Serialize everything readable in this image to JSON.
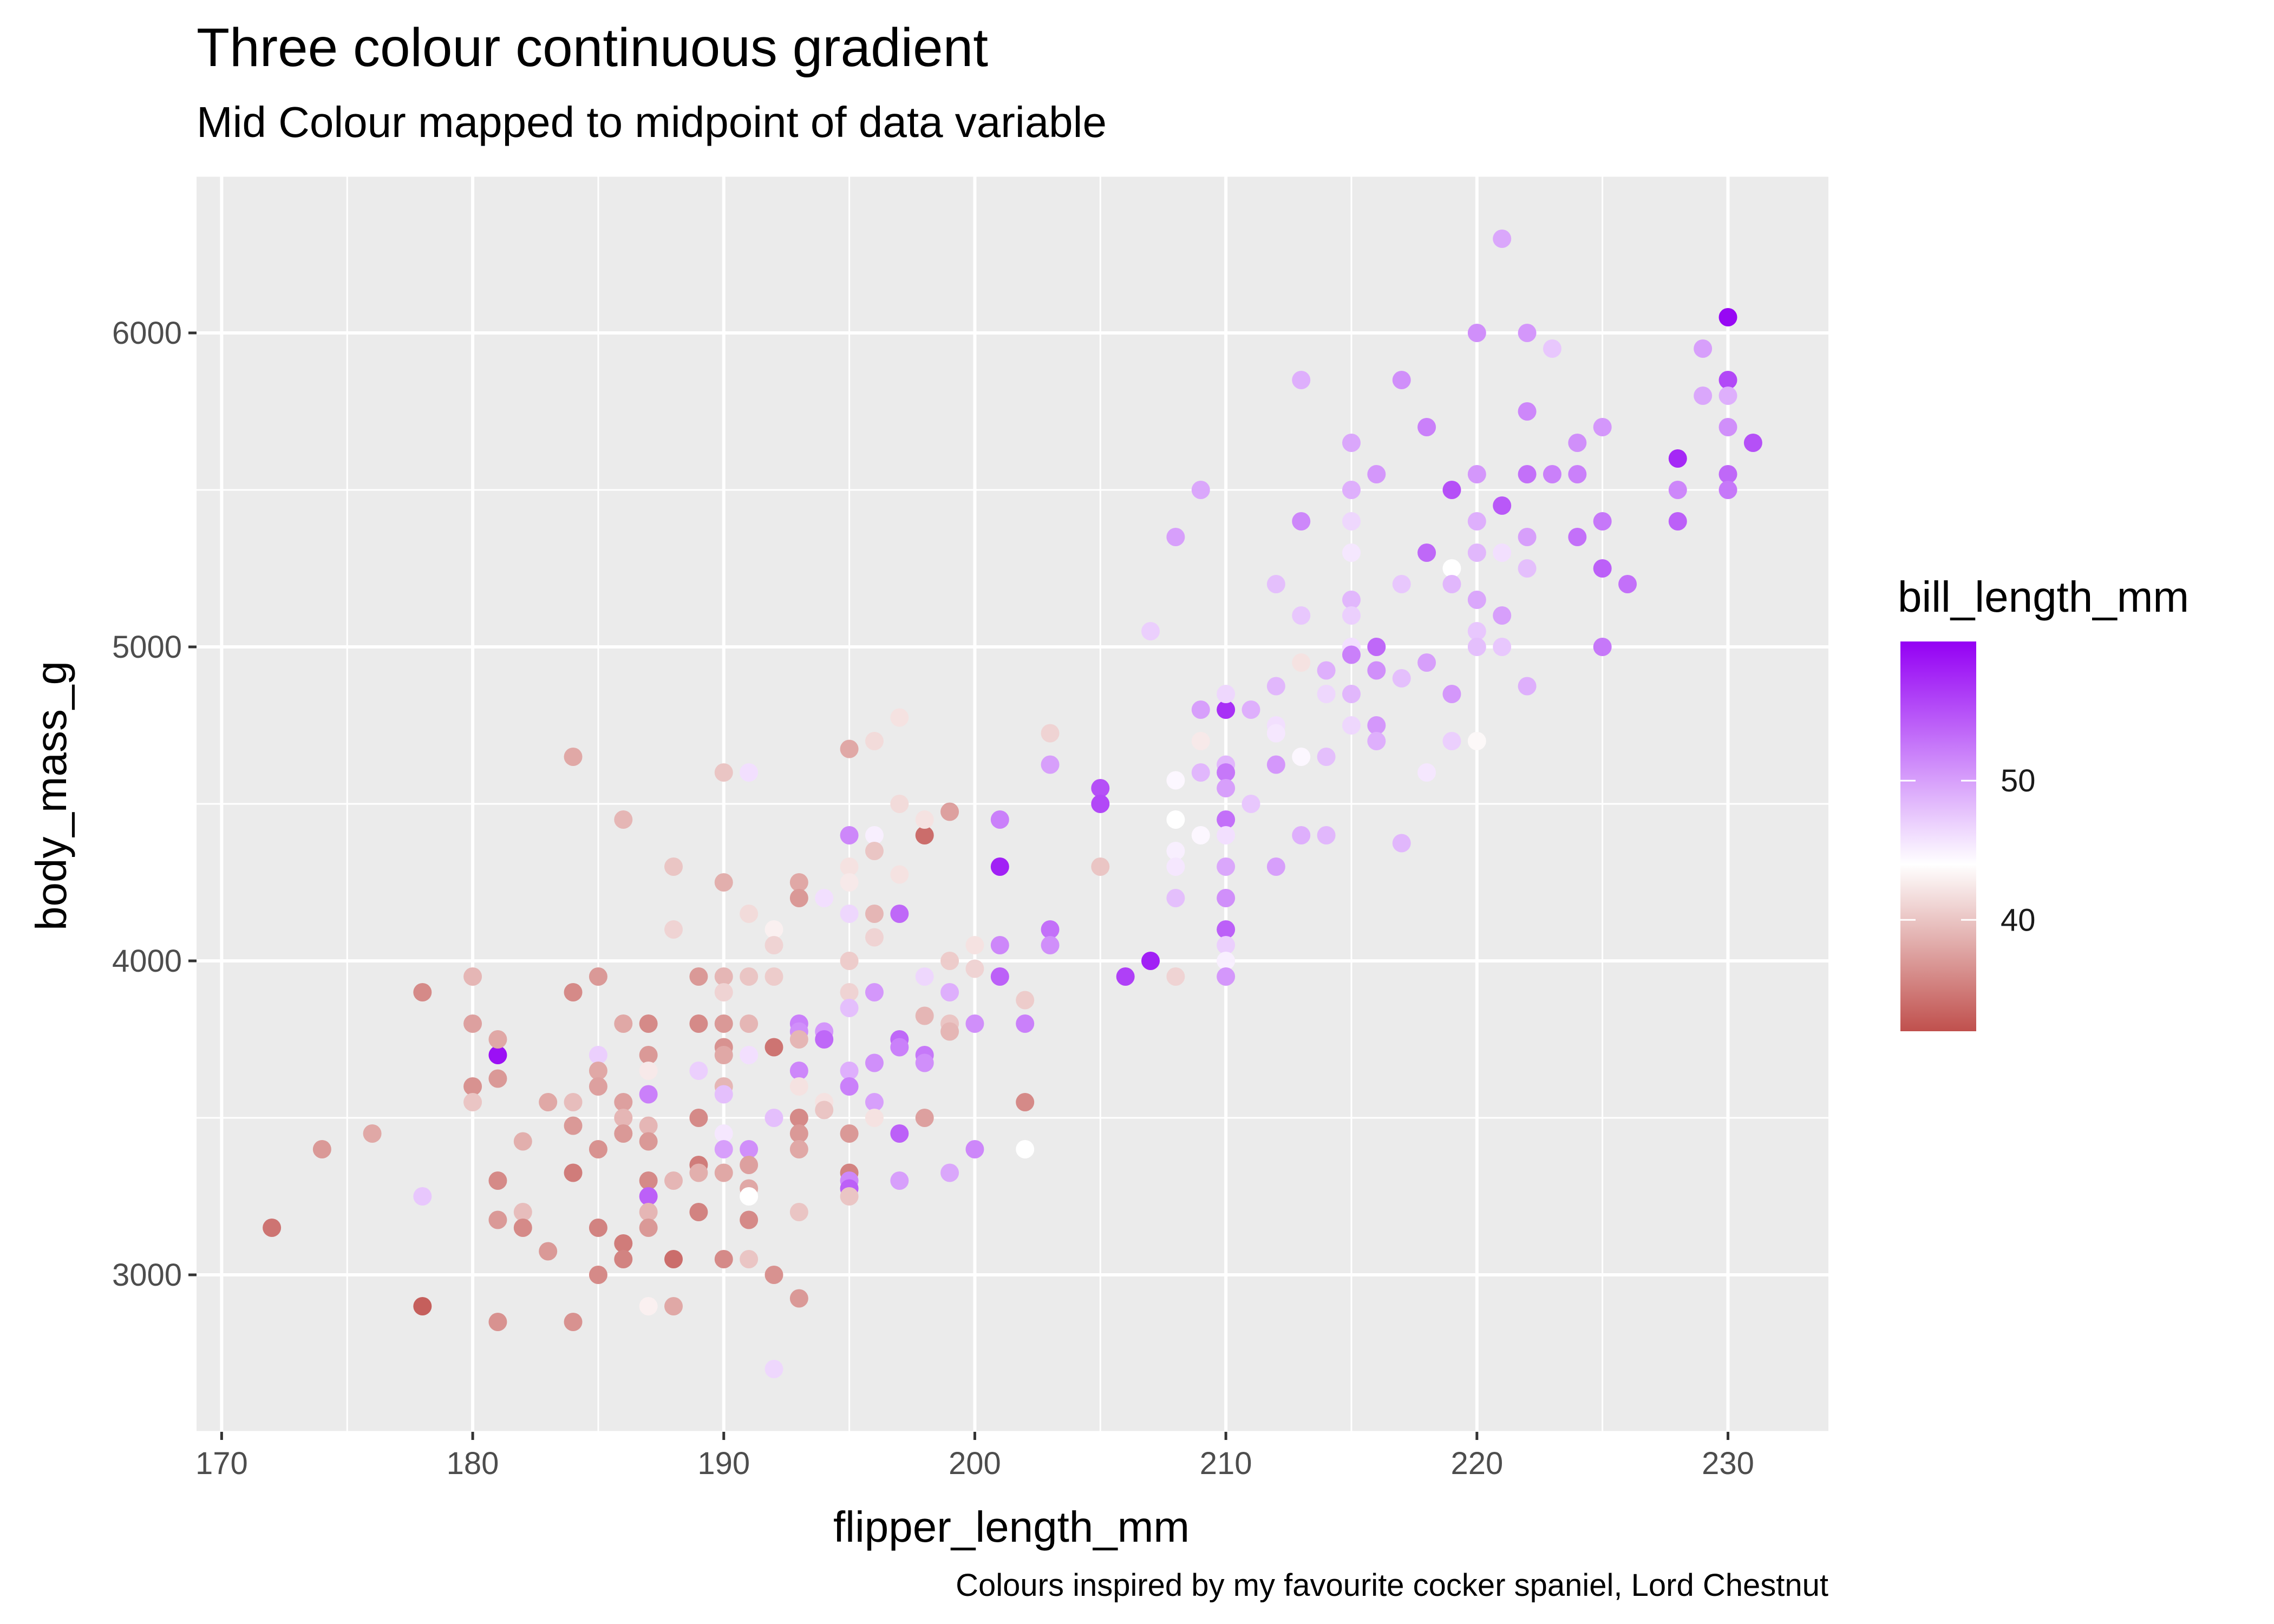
{
  "chart_data": {
    "type": "scatter",
    "title": "Three colour continuous gradient",
    "subtitle": "Mid Colour mapped to midpoint of data variable",
    "xlabel": "flipper_length_mm",
    "ylabel": "body_mass_g",
    "caption": "Colours inspired by my favourite cocker spaniel, Lord Chestnut",
    "xlim": [
      169,
      234
    ],
    "ylim": [
      2500,
      6500
    ],
    "xticks": [
      170,
      180,
      190,
      200,
      210,
      220,
      230
    ],
    "yticks": [
      3000,
      4000,
      5000,
      6000
    ],
    "grid": true,
    "legend": {
      "title": "bill_length_mm",
      "position": "right",
      "range": [
        32,
        60
      ],
      "ticks": [
        40,
        50
      ],
      "colors": {
        "low": "#C0504D",
        "mid": "#FFFFFF",
        "high": "#9400F4"
      },
      "midpoint": 44
    },
    "points": [
      [
        172,
        3150,
        34.5
      ],
      [
        174,
        3400,
        37.0
      ],
      [
        176,
        3450,
        38.0
      ],
      [
        178,
        3900,
        36.0
      ],
      [
        178,
        2900,
        33.0
      ],
      [
        178,
        3250,
        47.5
      ],
      [
        180,
        3950,
        39.0
      ],
      [
        180,
        3800,
        37.5
      ],
      [
        180,
        3600,
        36.5
      ],
      [
        180,
        3550,
        40.0
      ],
      [
        181,
        3700,
        59.0
      ],
      [
        181,
        3750,
        38.0
      ],
      [
        181,
        3625,
        37.0
      ],
      [
        181,
        3300,
        36.0
      ],
      [
        181,
        3175,
        37.0
      ],
      [
        181,
        2850,
        36.5
      ],
      [
        182,
        3425,
        38.5
      ],
      [
        182,
        3200,
        39.5
      ],
      [
        182,
        3150,
        36.0
      ],
      [
        183,
        3550,
        38.0
      ],
      [
        183,
        3075,
        37.0
      ],
      [
        184,
        4650,
        38.0
      ],
      [
        184,
        3900,
        36.0
      ],
      [
        184,
        3550,
        39.5
      ],
      [
        184,
        3475,
        37.0
      ],
      [
        184,
        3325,
        35.0
      ],
      [
        184,
        2850,
        36.5
      ],
      [
        185,
        3950,
        37.0
      ],
      [
        185,
        3700,
        47.0
      ],
      [
        185,
        3650,
        38.0
      ],
      [
        185,
        3600,
        37.5
      ],
      [
        185,
        3400,
        36.5
      ],
      [
        185,
        3150,
        35.5
      ],
      [
        185,
        3000,
        36.0
      ],
      [
        186,
        4450,
        39.0
      ],
      [
        186,
        3800,
        38.0
      ],
      [
        186,
        3550,
        37.5
      ],
      [
        186,
        3500,
        39.0
      ],
      [
        186,
        3450,
        37.0
      ],
      [
        186,
        3100,
        35.0
      ],
      [
        186,
        3050,
        35.5
      ],
      [
        187,
        3800,
        36.0
      ],
      [
        187,
        3700,
        37.0
      ],
      [
        187,
        3650,
        42.5
      ],
      [
        187,
        3575,
        52.0
      ],
      [
        187,
        3475,
        39.0
      ],
      [
        187,
        3425,
        37.0
      ],
      [
        187,
        3300,
        36.0
      ],
      [
        187,
        3250,
        54.0
      ],
      [
        187,
        3200,
        39.0
      ],
      [
        187,
        3150,
        37.0
      ],
      [
        187,
        2900,
        43.0
      ],
      [
        188,
        4300,
        40.0
      ],
      [
        188,
        4100,
        41.0
      ],
      [
        188,
        3050,
        34.0
      ],
      [
        188,
        2900,
        38.0
      ],
      [
        188,
        3300,
        39.0
      ],
      [
        189,
        3950,
        37.0
      ],
      [
        189,
        3800,
        36.0
      ],
      [
        189,
        3650,
        47.0
      ],
      [
        189,
        3500,
        36.0
      ],
      [
        189,
        3350,
        35.0
      ],
      [
        189,
        3325,
        38.5
      ],
      [
        189,
        3200,
        35.5
      ],
      [
        190,
        4600,
        40.0
      ],
      [
        190,
        4250,
        38.5
      ],
      [
        190,
        3950,
        39.0
      ],
      [
        190,
        3900,
        41.0
      ],
      [
        190,
        3800,
        37.0
      ],
      [
        190,
        3725,
        36.5
      ],
      [
        190,
        3700,
        38.0
      ],
      [
        190,
        3600,
        39.0
      ],
      [
        190,
        3575,
        48.0
      ],
      [
        190,
        3450,
        45.5
      ],
      [
        190,
        3400,
        50.0
      ],
      [
        190,
        3325,
        38.0
      ],
      [
        190,
        3050,
        36.0
      ],
      [
        191,
        4600,
        46.0
      ],
      [
        191,
        4150,
        41.5
      ],
      [
        191,
        3950,
        40.0
      ],
      [
        191,
        3800,
        39.0
      ],
      [
        191,
        3700,
        46.0
      ],
      [
        191,
        3400,
        51.0
      ],
      [
        191,
        3350,
        37.5
      ],
      [
        191,
        3275,
        38.0
      ],
      [
        191,
        3250,
        44.0
      ],
      [
        191,
        3175,
        36.0
      ],
      [
        191,
        3050,
        40.0
      ],
      [
        192,
        4100,
        43.0
      ],
      [
        192,
        4050,
        41.0
      ],
      [
        192,
        3950,
        40.5
      ],
      [
        192,
        3725,
        34.5
      ],
      [
        192,
        3500,
        48.0
      ],
      [
        192,
        3000,
        36.5
      ],
      [
        192,
        2700,
        46.5
      ],
      [
        193,
        4250,
        38.0
      ],
      [
        193,
        4200,
        37.0
      ],
      [
        193,
        3800,
        52.0
      ],
      [
        193,
        3775,
        51.0
      ],
      [
        193,
        3750,
        39.0
      ],
      [
        193,
        3650,
        51.5
      ],
      [
        193,
        3600,
        42.0
      ],
      [
        193,
        3500,
        36.0
      ],
      [
        193,
        3450,
        37.0
      ],
      [
        193,
        3400,
        38.0
      ],
      [
        193,
        3200,
        40.0
      ],
      [
        193,
        2925,
        37.0
      ],
      [
        194,
        4200,
        46.0
      ],
      [
        194,
        3775,
        50.5
      ],
      [
        194,
        3750,
        53.5
      ],
      [
        194,
        3550,
        42.0
      ],
      [
        194,
        3525,
        40.0
      ],
      [
        195,
        4675,
        38.0
      ],
      [
        195,
        4400,
        51.5
      ],
      [
        195,
        4300,
        42.0
      ],
      [
        195,
        4250,
        42.5
      ],
      [
        195,
        4150,
        46.5
      ],
      [
        195,
        4000,
        40.5
      ],
      [
        195,
        3900,
        41.0
      ],
      [
        195,
        3850,
        48.0
      ],
      [
        195,
        3650,
        49.0
      ],
      [
        195,
        3600,
        52.0
      ],
      [
        195,
        3450,
        37.0
      ],
      [
        195,
        3325,
        35.5
      ],
      [
        195,
        3300,
        51.5
      ],
      [
        195,
        3275,
        54.0
      ],
      [
        195,
        3250,
        40.0
      ],
      [
        196,
        4700,
        41.5
      ],
      [
        196,
        4400,
        45.0
      ],
      [
        196,
        4350,
        40.0
      ],
      [
        196,
        4150,
        39.0
      ],
      [
        196,
        4075,
        41.0
      ],
      [
        196,
        3900,
        50.5
      ],
      [
        196,
        3675,
        51.0
      ],
      [
        196,
        3550,
        50.0
      ],
      [
        196,
        3500,
        42.0
      ],
      [
        197,
        4775,
        42.0
      ],
      [
        197,
        4500,
        41.5
      ],
      [
        197,
        4275,
        42.0
      ],
      [
        197,
        4150,
        53.5
      ],
      [
        197,
        3750,
        53.5
      ],
      [
        197,
        3725,
        52.0
      ],
      [
        197,
        3450,
        54.0
      ],
      [
        197,
        3300,
        50.0
      ],
      [
        198,
        4400,
        34.0
      ],
      [
        198,
        4450,
        42.0
      ],
      [
        198,
        3950,
        46.5
      ],
      [
        198,
        3825,
        39.0
      ],
      [
        198,
        3700,
        52.5
      ],
      [
        198,
        3675,
        51.0
      ],
      [
        198,
        3500,
        37.5
      ],
      [
        199,
        4475,
        37.5
      ],
      [
        199,
        4000,
        40.5
      ],
      [
        199,
        3900,
        49.0
      ],
      [
        199,
        3800,
        40.0
      ],
      [
        199,
        3775,
        39.0
      ],
      [
        199,
        3325,
        49.5
      ],
      [
        200,
        4050,
        42.0
      ],
      [
        200,
        3975,
        41.0
      ],
      [
        200,
        3800,
        51.0
      ],
      [
        200,
        3400,
        51.5
      ],
      [
        201,
        4450,
        52.0
      ],
      [
        201,
        4300,
        58.0
      ],
      [
        201,
        4050,
        51.5
      ],
      [
        201,
        3950,
        54.0
      ],
      [
        202,
        3875,
        40.5
      ],
      [
        202,
        3800,
        52.0
      ],
      [
        202,
        3550,
        36.0
      ],
      [
        202,
        3400,
        44.0
      ],
      [
        203,
        4725,
        41.0
      ],
      [
        203,
        4625,
        50.0
      ],
      [
        203,
        4100,
        53.0
      ],
      [
        203,
        4050,
        51.0
      ],
      [
        205,
        4550,
        55.0
      ],
      [
        205,
        4500,
        55.5
      ],
      [
        205,
        4300,
        40.0
      ],
      [
        206,
        3950,
        56.0
      ],
      [
        207,
        4000,
        58.0
      ],
      [
        207,
        5050,
        47.0
      ],
      [
        208,
        4575,
        44.5
      ],
      [
        208,
        4450,
        44.0
      ],
      [
        208,
        4350,
        45.0
      ],
      [
        208,
        4300,
        45.5
      ],
      [
        208,
        4200,
        48.0
      ],
      [
        208,
        3950,
        41.0
      ],
      [
        208,
        5350,
        50.0
      ],
      [
        209,
        5500,
        49.5
      ],
      [
        209,
        4800,
        50.0
      ],
      [
        209,
        4700,
        42.5
      ],
      [
        209,
        4600,
        48.5
      ],
      [
        209,
        4400,
        44.5
      ],
      [
        210,
        4800,
        57.0
      ],
      [
        210,
        4850,
        46.5
      ],
      [
        210,
        4625,
        48.5
      ],
      [
        210,
        4600,
        52.5
      ],
      [
        210,
        4550,
        50.0
      ],
      [
        210,
        4450,
        53.0
      ],
      [
        210,
        4400,
        46.0
      ],
      [
        210,
        4300,
        49.5
      ],
      [
        210,
        4200,
        51.0
      ],
      [
        210,
        4100,
        54.0
      ],
      [
        210,
        4050,
        47.0
      ],
      [
        210,
        4000,
        45.0
      ],
      [
        210,
        3950,
        50.5
      ],
      [
        211,
        4800,
        49.0
      ],
      [
        211,
        4500,
        47.5
      ],
      [
        212,
        5200,
        48.0
      ],
      [
        212,
        4875,
        48.5
      ],
      [
        212,
        4750,
        46.0
      ],
      [
        212,
        4725,
        45.5
      ],
      [
        212,
        4625,
        50.5
      ],
      [
        212,
        4300,
        50.0
      ],
      [
        213,
        5850,
        49.0
      ],
      [
        213,
        5400,
        51.5
      ],
      [
        213,
        5100,
        47.5
      ],
      [
        213,
        4950,
        42.0
      ],
      [
        213,
        4650,
        44.5
      ],
      [
        213,
        4400,
        49.0
      ],
      [
        214,
        4925,
        49.0
      ],
      [
        214,
        4850,
        46.5
      ],
      [
        214,
        4650,
        48.0
      ],
      [
        214,
        4400,
        48.5
      ],
      [
        215,
        5650,
        49.5
      ],
      [
        215,
        5500,
        49.0
      ],
      [
        215,
        5400,
        46.5
      ],
      [
        215,
        5300,
        45.5
      ],
      [
        215,
        5150,
        48.5
      ],
      [
        215,
        5100,
        47.0
      ],
      [
        215,
        5000,
        46.0
      ],
      [
        215,
        4975,
        52.0
      ],
      [
        215,
        4850,
        48.5
      ],
      [
        215,
        4750,
        46.5
      ],
      [
        216,
        5550,
        50.5
      ],
      [
        216,
        5000,
        53.5
      ],
      [
        216,
        4925,
        51.0
      ],
      [
        216,
        4750,
        50.5
      ],
      [
        216,
        4700,
        49.0
      ],
      [
        217,
        5850,
        51.0
      ],
      [
        217,
        5200,
        47.5
      ],
      [
        217,
        4900,
        48.0
      ],
      [
        217,
        4375,
        48.5
      ],
      [
        218,
        5700,
        52.0
      ],
      [
        218,
        5300,
        53.5
      ],
      [
        218,
        4950,
        50.0
      ],
      [
        218,
        4600,
        45.5
      ],
      [
        219,
        5500,
        55.0
      ],
      [
        219,
        5250,
        44.0
      ],
      [
        219,
        5200,
        48.5
      ],
      [
        219,
        4850,
        50.5
      ],
      [
        219,
        4700,
        47.0
      ],
      [
        220,
        6000,
        51.0
      ],
      [
        220,
        5550,
        50.5
      ],
      [
        220,
        5400,
        49.0
      ],
      [
        220,
        5300,
        48.5
      ],
      [
        220,
        5150,
        49.5
      ],
      [
        220,
        5050,
        47.5
      ],
      [
        220,
        5000,
        48.0
      ],
      [
        220,
        4700,
        43.5
      ],
      [
        221,
        6300,
        49.5
      ],
      [
        221,
        5450,
        54.5
      ],
      [
        221,
        5300,
        46.0
      ],
      [
        221,
        5100,
        50.0
      ],
      [
        221,
        5000,
        47.5
      ],
      [
        222,
        6000,
        50.5
      ],
      [
        222,
        5750,
        51.5
      ],
      [
        222,
        5550,
        53.0
      ],
      [
        222,
        5350,
        50.0
      ],
      [
        222,
        5250,
        48.0
      ],
      [
        222,
        4875,
        49.0
      ],
      [
        223,
        5950,
        47.5
      ],
      [
        223,
        5550,
        52.0
      ],
      [
        224,
        5650,
        51.0
      ],
      [
        224,
        5550,
        52.0
      ],
      [
        224,
        5350,
        53.0
      ],
      [
        225,
        5700,
        50.5
      ],
      [
        225,
        5400,
        52.5
      ],
      [
        225,
        5250,
        54.0
      ],
      [
        225,
        5000,
        52.5
      ],
      [
        226,
        5200,
        53.0
      ],
      [
        228,
        5600,
        57.5
      ],
      [
        228,
        5500,
        51.5
      ],
      [
        228,
        5400,
        54.0
      ],
      [
        229,
        5950,
        50.0
      ],
      [
        229,
        5800,
        49.5
      ],
      [
        230,
        6050,
        59.5
      ],
      [
        230,
        5850,
        55.5
      ],
      [
        230,
        5800,
        49.0
      ],
      [
        230,
        5700,
        51.0
      ],
      [
        230,
        5550,
        53.5
      ],
      [
        230,
        5500,
        52.5
      ],
      [
        231,
        5650,
        55.0
      ]
    ]
  }
}
